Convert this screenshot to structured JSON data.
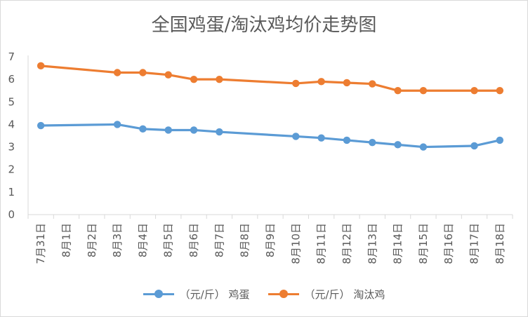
{
  "chart_data": {
    "type": "line",
    "title": "全国鸡蛋/淘汰鸡均价走势图",
    "categories": [
      "7月31日",
      "8月1日",
      "8月2日",
      "8月3日",
      "8月4日",
      "8月5日",
      "8月6日",
      "8月7日",
      "8月8日",
      "8月9日",
      "8月10日",
      "8月11日",
      "8月12日",
      "8月13日",
      "8月14日",
      "8月15日",
      "8月16日",
      "8月17日",
      "8月18日"
    ],
    "ylim": [
      0,
      7
    ],
    "yticks": [
      0,
      1,
      2,
      3,
      4,
      5,
      6,
      7
    ],
    "grid": false,
    "legend_position": "bottom",
    "series": [
      {
        "name": "（元/斤）  鸡蛋",
        "color": "#5b9bd5",
        "values": [
          3.95,
          null,
          null,
          4.0,
          3.8,
          3.75,
          3.75,
          3.67,
          null,
          null,
          3.47,
          3.4,
          3.3,
          3.2,
          3.1,
          3.0,
          null,
          3.05,
          3.3
        ]
      },
      {
        "name": "（元/斤）  淘汰鸡",
        "color": "#ed7d31",
        "values": [
          6.6,
          null,
          null,
          6.3,
          6.3,
          6.2,
          6.0,
          6.0,
          null,
          null,
          5.82,
          5.9,
          5.85,
          5.8,
          5.5,
          5.5,
          null,
          5.5,
          5.5
        ]
      }
    ]
  }
}
